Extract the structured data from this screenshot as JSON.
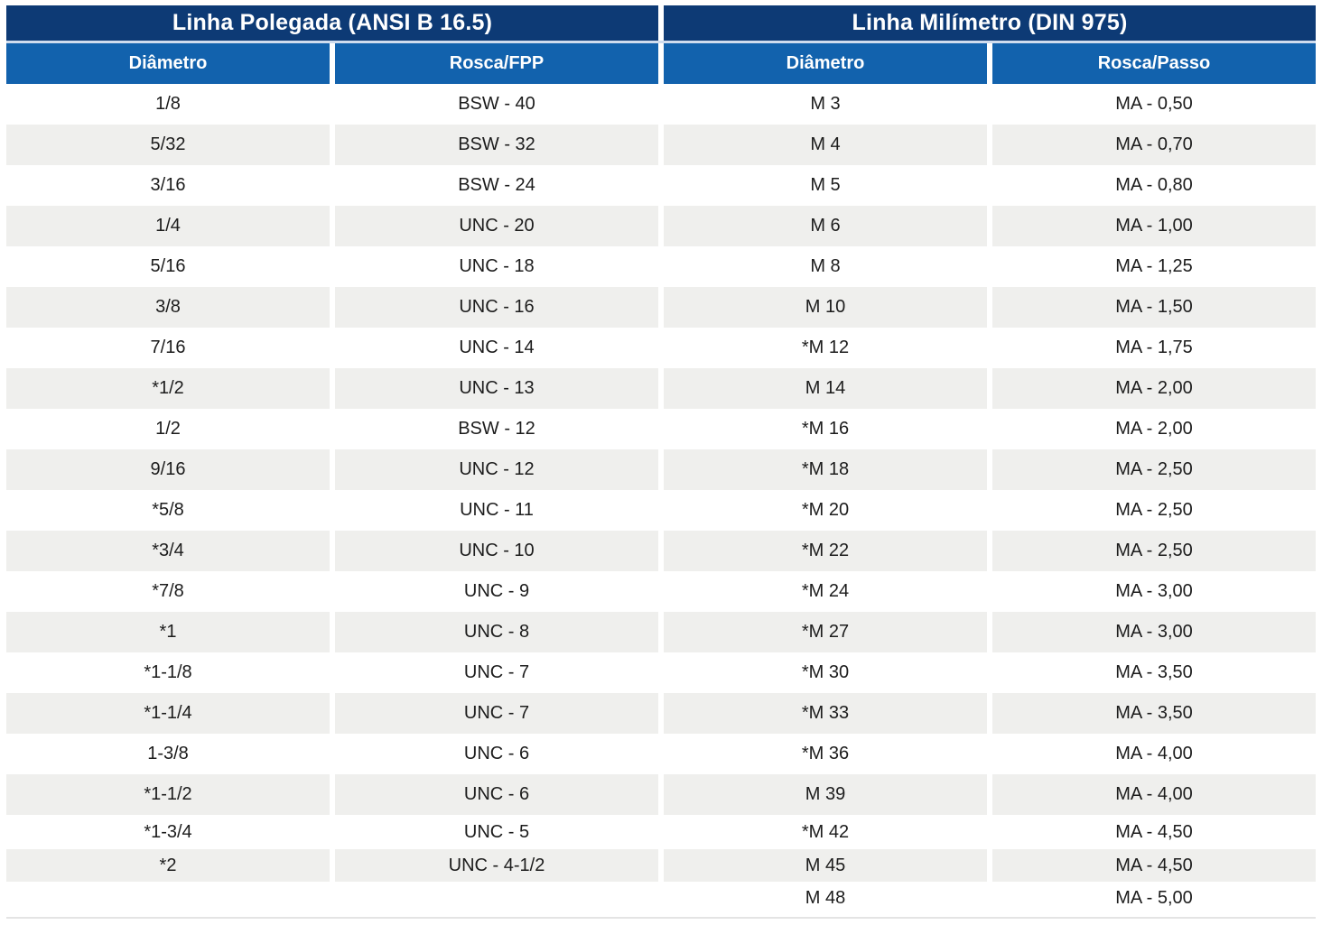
{
  "table": {
    "sections": [
      {
        "id": "inch",
        "title": "Linha Polegada (ANSI B 16.5)",
        "columns": [
          "Diâmetro",
          "Rosca/FPP"
        ]
      },
      {
        "id": "metric",
        "title": "Linha Milímetro (DIN 975)",
        "columns": [
          "Diâmetro",
          "Rosca/Passo"
        ]
      }
    ],
    "rows": [
      [
        "1/8",
        "BSW - 40",
        "M 3",
        "MA - 0,50"
      ],
      [
        "5/32",
        "BSW - 32",
        "M 4",
        "MA - 0,70"
      ],
      [
        "3/16",
        "BSW - 24",
        "M 5",
        "MA - 0,80"
      ],
      [
        "1/4",
        "UNC - 20",
        "M 6",
        "MA - 1,00"
      ],
      [
        "5/16",
        "UNC - 18",
        "M 8",
        "MA - 1,25"
      ],
      [
        "3/8",
        "UNC - 16",
        "M 10",
        "MA - 1,50"
      ],
      [
        "7/16",
        "UNC - 14",
        "*M 12",
        "MA - 1,75"
      ],
      [
        "*1/2",
        "UNC - 13",
        "M 14",
        "MA - 2,00"
      ],
      [
        "1/2",
        "BSW - 12",
        "*M 16",
        "MA - 2,00"
      ],
      [
        "9/16",
        "UNC - 12",
        "*M 18",
        "MA - 2,50"
      ],
      [
        "*5/8",
        "UNC - 11",
        "*M 20",
        "MA - 2,50"
      ],
      [
        "*3/4",
        "UNC - 10",
        "*M 22",
        "MA - 2,50"
      ],
      [
        "*7/8",
        "UNC - 9",
        "*M 24",
        "MA - 3,00"
      ],
      [
        "*1",
        "UNC - 8",
        "*M 27",
        "MA - 3,00"
      ],
      [
        "*1-1/8",
        "UNC - 7",
        "*M 30",
        "MA - 3,50"
      ],
      [
        "*1-1/4",
        "UNC - 7",
        "*M 33",
        "MA - 3,50"
      ],
      [
        "1-3/8",
        "UNC - 6",
        "*M 36",
        "MA - 4,00"
      ],
      [
        "*1-1/2",
        "UNC - 6",
        "M 39",
        "MA - 4,00"
      ],
      [
        "*1-3/4",
        "UNC - 5",
        "*M 42",
        "MA - 4,50"
      ],
      [
        "*2",
        "UNC - 4-1/2",
        "M 45",
        "MA - 4,50"
      ],
      [
        "",
        "",
        "M 48",
        "MA - 5,00"
      ]
    ],
    "colors": {
      "title_band": "#0d3a75",
      "subheader_band": "#1262ad",
      "stripe": "#efefed",
      "text": "#1c1c1c",
      "band_separator": "#cfdcee",
      "bottom_border": "#e4e4e4"
    }
  }
}
